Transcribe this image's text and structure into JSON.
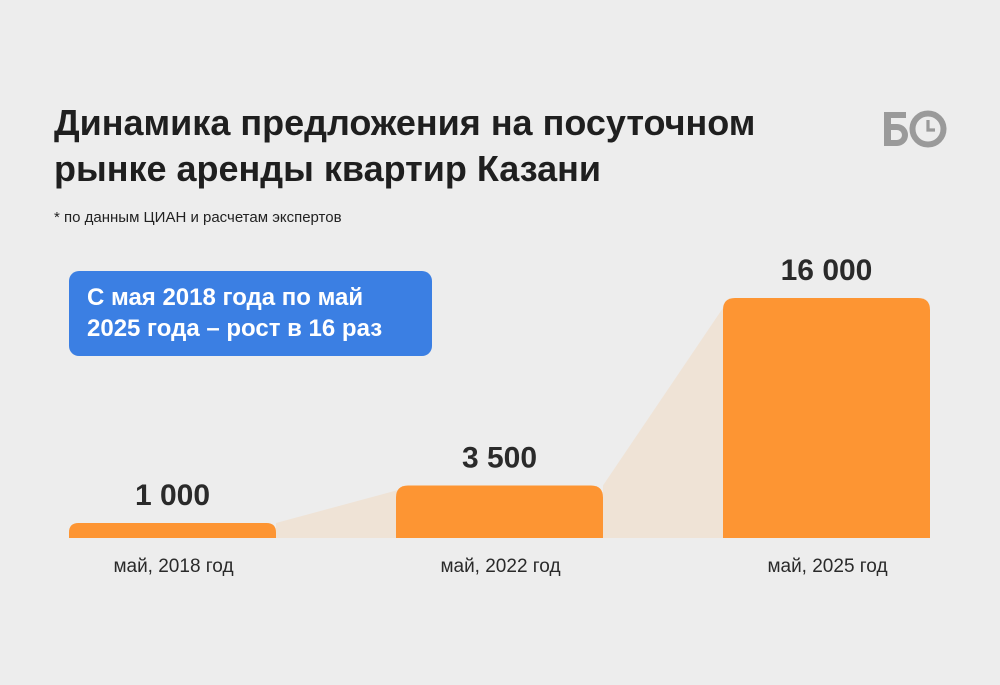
{
  "header": {
    "title_lines": [
      "Динамика предложения на посуточном",
      "рынке аренды квартир Казани"
    ],
    "note": "* по данным ЦИАН и расчетам экспертов"
  },
  "logo": {
    "icon": "bo-clock-logo-icon",
    "color": "#9a9a9a"
  },
  "callout": {
    "lines": [
      "С мая 2018 года по май",
      "2025 года – рост в 16 раз"
    ],
    "color": "#3b7fe3"
  },
  "chart_data": {
    "type": "bar",
    "title": "Динамика предложения на посуточном рынке аренды квартир Казани",
    "categories": [
      "май, 2018 год",
      "май, 2022 год",
      "май, 2025 год"
    ],
    "values": [
      1000,
      3500,
      16000
    ],
    "value_labels": [
      "1 000",
      "3 500",
      "16 000"
    ],
    "ylim": [
      0,
      16000
    ],
    "grid": false,
    "legend": "none",
    "colors": {
      "bar": "#fd9533",
      "connector": "#efe3d6",
      "text": "#2a2a2a"
    }
  }
}
